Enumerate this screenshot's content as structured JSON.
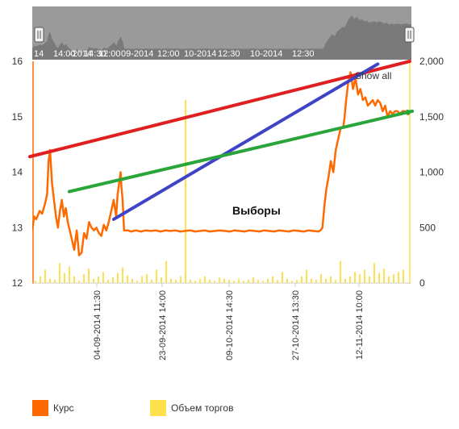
{
  "chart_data": {
    "type": "line",
    "title": "",
    "annotation": "Выборы",
    "show_all_label": "Show all",
    "y_left": {
      "min": 12,
      "max": 16,
      "ticks": [
        "12",
        "13",
        "14",
        "15",
        "16"
      ]
    },
    "y_right": {
      "min": 0,
      "max": 2000,
      "ticks": [
        "0",
        "500",
        "1,000",
        "1,500",
        "2,000"
      ]
    },
    "x_ticks": [
      "04-09-2014 11:30",
      "23-09-2014 14:00",
      "09-10-2014 14:30",
      "27-10-2014 13:30",
      "12-11-2014 10:00"
    ],
    "navigator_labels": [
      "14",
      "14:00",
      "-2014",
      "14:30",
      "12:00",
      "09-2014",
      "12:00",
      "10-2014",
      "12:30",
      "10-2014",
      "12:30"
    ],
    "series": [
      {
        "name": "Курс",
        "color": "#ff6a00",
        "t": [
          0,
          0.4,
          0.8,
          1.5,
          2,
          2.5,
          3,
          3.3,
          3.6,
          4,
          4.4,
          4.8,
          5.2,
          5.6,
          6,
          6.4,
          6.8,
          7.2,
          7.6,
          8,
          8.5,
          9,
          9.5,
          10,
          10.5,
          11,
          11.5,
          12,
          12.5,
          13,
          13.5,
          14,
          14.5,
          15,
          15.5,
          16,
          16.5,
          17,
          17.3,
          17.6,
          17.9,
          18.1,
          18.3,
          18.6,
          19,
          19.4,
          20,
          21,
          22,
          23,
          24,
          25,
          26,
          27,
          28,
          29,
          30,
          31,
          32,
          33,
          34,
          35,
          36,
          37,
          38,
          39,
          40,
          41,
          42,
          43,
          44,
          45,
          46,
          47,
          48,
          49,
          50,
          51,
          52,
          53,
          54,
          55,
          56,
          57,
          58,
          58.4,
          58.8,
          59.2,
          59.6,
          60,
          60.5,
          61,
          61.5,
          62,
          62.5,
          63,
          63.3,
          63.6,
          64,
          64.5,
          65,
          65.5,
          66,
          66.5,
          67,
          67.5,
          68,
          68.5,
          69,
          69.5,
          70,
          70.5,
          71,
          71.5,
          72,
          72.5,
          73,
          73.5,
          74,
          74.5,
          75,
          75.5,
          76,
          76.5
        ],
        "values": [
          12.95,
          13.2,
          13.15,
          13.3,
          13.25,
          13.4,
          13.6,
          14.2,
          14.4,
          13.8,
          13.5,
          13.2,
          13.0,
          13.3,
          13.5,
          13.2,
          13.35,
          13.1,
          12.95,
          12.8,
          12.6,
          12.95,
          12.5,
          12.55,
          12.9,
          12.8,
          13.1,
          13.0,
          12.95,
          13.0,
          12.9,
          12.85,
          13.05,
          12.95,
          13.1,
          13.3,
          13.5,
          13.2,
          13.6,
          13.8,
          14.0,
          13.7,
          13.5,
          12.95,
          12.95,
          12.95,
          12.93,
          12.95,
          12.93,
          12.95,
          12.94,
          12.95,
          12.93,
          12.95,
          12.94,
          12.95,
          12.93,
          12.94,
          12.95,
          12.93,
          12.94,
          12.95,
          12.93,
          12.94,
          12.95,
          12.94,
          12.93,
          12.95,
          12.94,
          12.93,
          12.95,
          12.94,
          12.93,
          12.95,
          12.94,
          12.93,
          12.95,
          12.94,
          12.93,
          12.95,
          12.94,
          12.93,
          12.95,
          12.94,
          12.93,
          12.95,
          13.0,
          13.4,
          13.7,
          13.9,
          14.2,
          14.0,
          14.4,
          14.6,
          14.8,
          14.8,
          15.0,
          15.3,
          15.6,
          15.8,
          15.5,
          15.7,
          15.4,
          15.5,
          15.3,
          15.35,
          15.2,
          15.25,
          15.3,
          15.2,
          15.3,
          15.25,
          15.1,
          15.2,
          15.0,
          15.1,
          15.05,
          15.1,
          15.1,
          15.05,
          15.1,
          15.1,
          15.05,
          15.05
        ],
        "t_max": 76.5
      },
      {
        "name": "Объем торгов",
        "color": "#ffe14d",
        "type": "column",
        "values": [
          20,
          60,
          120,
          40,
          30,
          180,
          90,
          150,
          60,
          20,
          80,
          130,
          40,
          60,
          100,
          30,
          50,
          90,
          140,
          70,
          40,
          20,
          60,
          80,
          30,
          120,
          50,
          200,
          40,
          30,
          60,
          1650,
          30,
          20,
          40,
          60,
          30,
          20,
          50,
          40,
          30,
          20,
          40,
          20,
          30,
          50,
          30,
          20,
          40,
          60,
          30,
          100,
          40,
          20,
          30,
          60,
          120,
          40,
          30,
          80,
          40,
          60,
          30,
          200,
          40,
          60,
          100,
          80,
          120,
          60,
          180,
          90,
          130,
          60,
          80,
          100,
          120
        ]
      }
    ],
    "trend_lines": [
      {
        "color": "#e02020",
        "from": [
          -0.5,
          14.28
        ],
        "to": [
          76.5,
          16.0
        ]
      },
      {
        "color": "#3f44c6",
        "from": [
          16.5,
          13.15
        ],
        "to": [
          70.0,
          15.95
        ]
      },
      {
        "color": "#2aa53a",
        "from": [
          7.5,
          13.65
        ],
        "to": [
          77.0,
          15.1
        ]
      }
    ],
    "legend_placement": "bottom-left"
  },
  "legend": [
    {
      "label": "Курс",
      "color": "#ff6a00"
    },
    {
      "label": "Объем торгов",
      "color": "#ffe14d"
    }
  ]
}
